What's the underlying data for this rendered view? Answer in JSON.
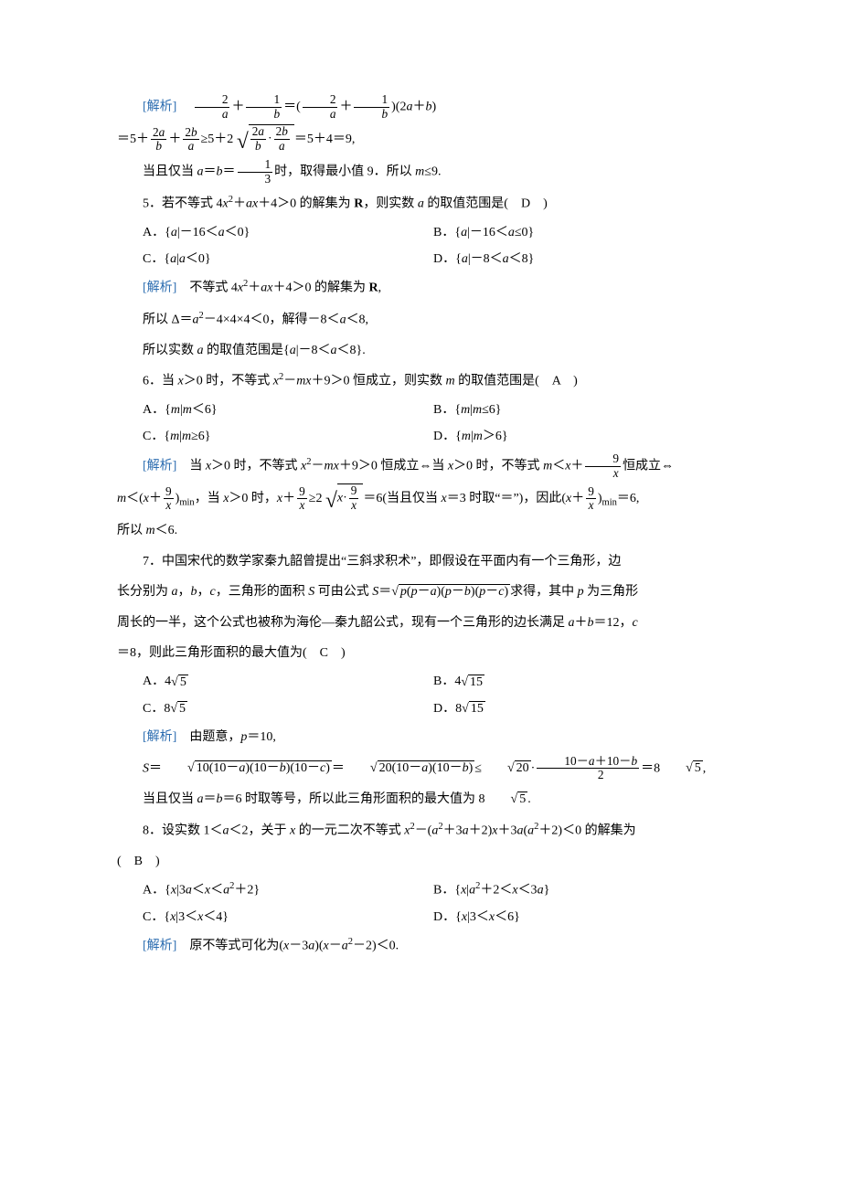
{
  "colors": {
    "accent": "#2b6cb0",
    "text": "#000000",
    "background": "#ffffff"
  },
  "typography": {
    "font_family": "SimSun",
    "font_size_pt": 10.5,
    "line_height": 2.1
  },
  "blocks": [
    {
      "id": "sol4",
      "label": "[解析]",
      "lines": [
        "2/a + 1/b = (2/a + 1/b)(2a + b)",
        "= 5 + 2a/b + 2b/a ≥ 5 + 2√((2a/b)·(2b/a)) = 5 + 4 = 9,",
        "当且仅当 a = b = 1/3 时，取得最小值 9．所以 m ≤ 9."
      ]
    },
    {
      "id": "q5",
      "number": "5",
      "stem": "若不等式 4x² + ax + 4 > 0 的解集为 R，则实数 a 的取值范围是(　D　)",
      "options": {
        "A": "{a | −16 < a < 0}",
        "B": "{a | −16 < a ≤ 0}",
        "C": "{a | a < 0}",
        "D": "{a | −8 < a < 8}"
      },
      "answer": "D",
      "sol_label": "[解析]",
      "solution": [
        "不等式 4x² + ax + 4 > 0 的解集为 R，",
        "所以 Δ = a² − 4×4×4 < 0，解得 −8 < a < 8，",
        "所以实数 a 的取值范围是 {a | −8 < a < 8}."
      ]
    },
    {
      "id": "q6",
      "number": "6",
      "stem": "当 x > 0 时，不等式 x² − mx + 9 > 0 恒成立，则实数 m 的取值范围是(　A　)",
      "options": {
        "A": "{m | m < 6}",
        "B": "{m | m ≤ 6}",
        "C": "{m | m ≥ 6}",
        "D": "{m | m > 6}"
      },
      "answer": "A",
      "sol_label": "[解析]",
      "solution": [
        "当 x > 0 时，不等式 x² − mx + 9 > 0 恒成立 ⇔ 当 x > 0 时，不等式 m < x + 9/x 恒成立 ⇔",
        "m < (x + 9/x)_min，当 x > 0 时，x + 9/x ≥ 2√(x·(9/x)) = 6 (当且仅当 x = 3 时取“=”)，因此 (x + 9/x)_min = 6，",
        "所以 m < 6."
      ]
    },
    {
      "id": "q7",
      "number": "7",
      "stem": "中国宋代的数学家秦九韶曾提出“三斜求积术”，即假设在平面内有一个三角形，边长分别为 a，b，c，三角形的面积 S 可由公式 S = √(p(p−a)(p−b)(p−c)) 求得，其中 p 为三角形周长的一半，这个公式也被称为海伦—秦九韶公式，现有一个三角形的边长满足 a + b = 12，c = 8，则此三角形面积的最大值为(　C　)",
      "options": {
        "A": "4√5",
        "B": "4√15",
        "C": "8√5",
        "D": "8√15"
      },
      "answer": "C",
      "sol_label": "[解析]",
      "solution": [
        "由题意，p = 10，",
        "S = √(10(10−a)(10−b)(10−c)) = √(20(10−a)(10−b)) ≤ √20 · ((10−a+10−b)/2) = 8√5,",
        "当且仅当 a = b = 6 时取等号，所以此三角形面积的最大值为 8√5."
      ]
    },
    {
      "id": "q8",
      "number": "8",
      "stem": "设实数 1 < a < 2，关于 x 的一元二次不等式 x² − (a² + 3a + 2)x + 3a(a² + 2) < 0 的解集为(　B　)",
      "options": {
        "A": "{x | 3a < x < a² + 2}",
        "B": "{x | a² + 2 < x < 3a}",
        "C": "{x | 3 < x < 4}",
        "D": "{x | 3 < x < 6}"
      },
      "answer": "B",
      "sol_label": "[解析]",
      "solution": [
        "原不等式可化为 (x − 3a)(x − a² − 2) < 0."
      ]
    }
  ]
}
